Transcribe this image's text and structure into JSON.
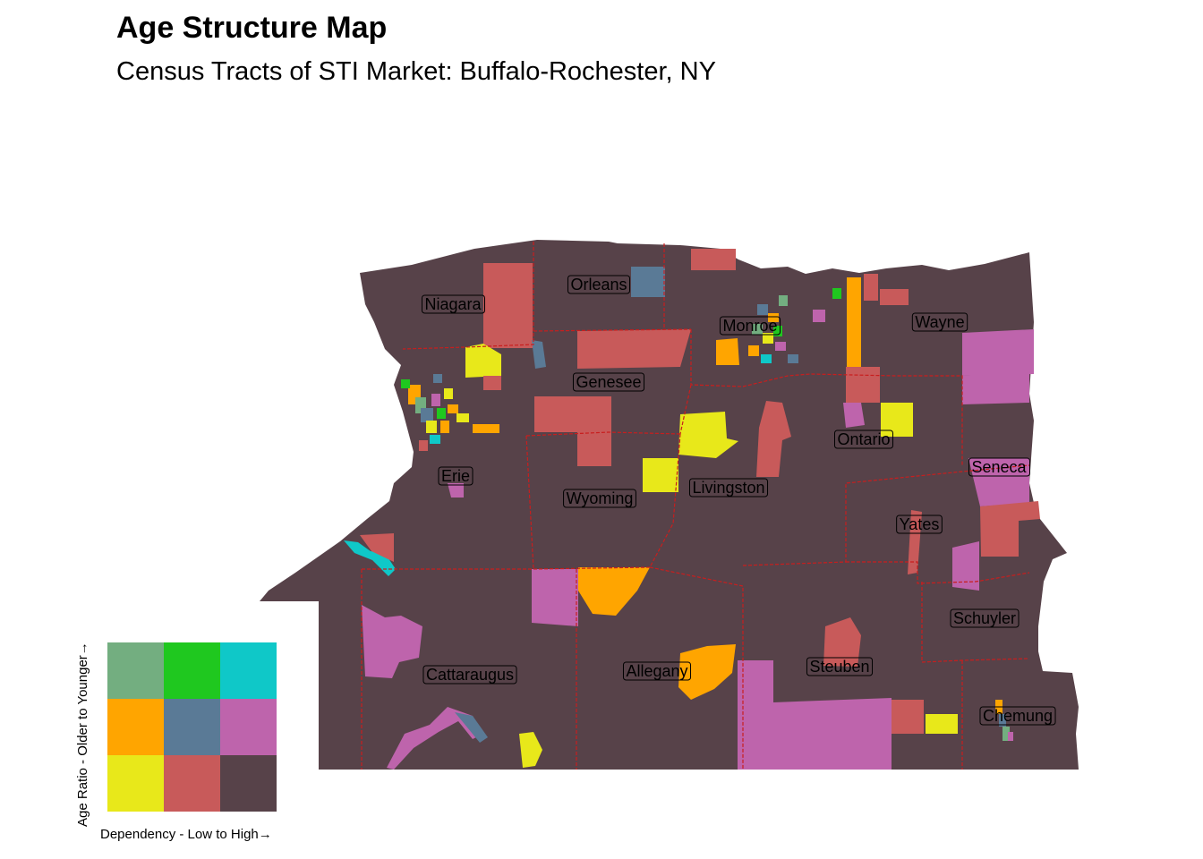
{
  "title": "Age Structure Map",
  "subtitle": "Census Tracts of STI Market: Buffalo-Rochester, NY",
  "colors": {
    "background": "#574249",
    "border": "#c81e1e",
    "sage": "#73ae80",
    "green": "#1fc81f",
    "teal": "#0fc8c8",
    "orange": "#ffa500",
    "slate": "#5a7a96",
    "pink": "#be64ac",
    "yellow": "#e8e81a",
    "salmon": "#c85a5a",
    "dark": "#574249"
  },
  "counties": [
    "Niagara",
    "Orleans",
    "Monroe",
    "Wayne",
    "Genesee",
    "Ontario",
    "Erie",
    "Seneca",
    "Wyoming",
    "Livingston",
    "Yates",
    "Schuyler",
    "Cattaraugus",
    "Allegany",
    "Steuben",
    "Chemung"
  ],
  "legend": {
    "x_label": "Dependency - Low to High→",
    "y_label": "Age Ratio - Older to Younger→",
    "grid": [
      [
        "#73ae80",
        "#1fc81f",
        "#0fc8c8"
      ],
      [
        "#ffa500",
        "#5a7a96",
        "#be64ac"
      ],
      [
        "#e8e81a",
        "#c85a5a",
        "#574249"
      ]
    ]
  }
}
